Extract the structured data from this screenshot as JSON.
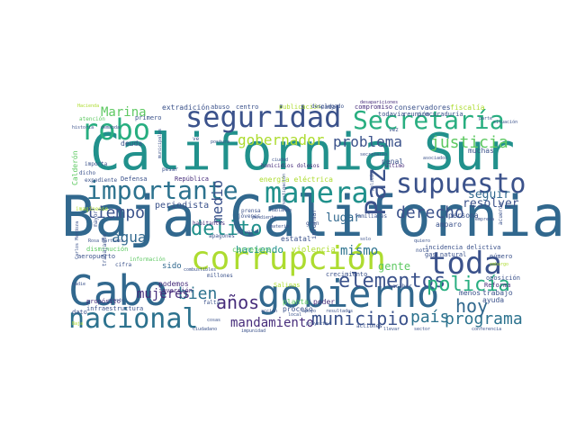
{
  "palette": {
    "purple": "#440154",
    "indigo": "#472d7b",
    "blue": "#3b528b",
    "steel": "#2c728e",
    "teal": "#21918c",
    "green": "#28ae80",
    "lime": "#5ec962",
    "yellow": "#addc30",
    "bright": "#d5e21a"
  },
  "words": [
    {
      "text": "Baja California",
      "color": "#31688e"
    },
    {
      "text": "California Sur",
      "color": "#21918c"
    },
    {
      "text": "gobierno",
      "color": "#31688e"
    },
    {
      "text": "Cabo",
      "color": "#31688e"
    },
    {
      "text": "corrupción",
      "color": "#addc30"
    },
    {
      "text": "seguridad",
      "color": "#3b528b"
    },
    {
      "text": "Secretaría",
      "color": "#28ae80"
    },
    {
      "text": "manera",
      "color": "#21918c"
    },
    {
      "text": "importante",
      "color": "#2c728e"
    },
    {
      "text": "supuesto",
      "color": "#3b528b"
    },
    {
      "text": "nacional",
      "color": "#2c728e"
    },
    {
      "text": "toda",
      "color": "#3b528b"
    },
    {
      "text": "robo",
      "color": "#28ae80"
    },
    {
      "text": "Paz",
      "color": "#3b528b"
    },
    {
      "text": "municipio",
      "color": "#3b528b"
    },
    {
      "text": "elementos",
      "color": "#3b528b"
    },
    {
      "text": "delito",
      "color": "#21918c"
    },
    {
      "text": "años",
      "color": "#472d7b"
    },
    {
      "text": "policía",
      "color": "#28ae80"
    },
    {
      "text": "país",
      "color": "#2c728e"
    },
    {
      "text": "programa",
      "color": "#2c728e"
    },
    {
      "text": "bien",
      "color": "#2c728e"
    },
    {
      "text": "hoy",
      "color": "#31688e"
    },
    {
      "text": "justicia",
      "color": "#5ec962"
    },
    {
      "text": "derecho",
      "color": "#3b528b"
    },
    {
      "text": "gobernador",
      "color": "#addc30"
    },
    {
      "text": "problema",
      "color": "#3b528b"
    },
    {
      "text": "tiempo",
      "color": "#3b528b"
    },
    {
      "text": "agua",
      "color": "#31688e"
    },
    {
      "text": "mujeres",
      "color": "#472d7b"
    },
    {
      "text": "mandamiento",
      "color": "#472d7b"
    },
    {
      "text": "Marina",
      "color": "#5ec962"
    },
    {
      "text": "medio",
      "color": "#3b528b"
    },
    {
      "text": "mismo",
      "color": "#2c728e"
    },
    {
      "text": "seguir",
      "color": "#31688e"
    },
    {
      "text": "resolver",
      "color": "#3b528b"
    },
    {
      "text": "lugar",
      "color": "#31688e"
    },
    {
      "text": "gente",
      "color": "#5ec962"
    },
    {
      "text": "periodista",
      "color": "#3b528b"
    },
    {
      "text": "haciendo",
      "color": "#21918c"
    },
    {
      "text": "sido",
      "color": "#31688e"
    },
    {
      "text": "extradición",
      "color": "#3b528b"
    },
    {
      "text": "conservadores",
      "color": "#3b528b"
    },
    {
      "text": "fiscalía",
      "color": "#addc30"
    },
    {
      "text": "energía eléctrica",
      "color": "#addc30"
    },
    {
      "text": "persona",
      "color": "#3b528b"
    },
    {
      "text": "amparo",
      "color": "#3b528b"
    },
    {
      "text": "penal",
      "color": "#3b528b"
    },
    {
      "text": "proceso",
      "color": "#3b528b"
    },
    {
      "text": "poder",
      "color": "#472d7b"
    },
    {
      "text": "planta",
      "color": "#5ec962"
    },
    {
      "text": "estatal",
      "color": "#3b528b"
    },
    {
      "text": "podemos",
      "color": "#472d7b"
    },
    {
      "text": "inversión",
      "color": "#472d7b"
    },
    {
      "text": "violencia",
      "color": "#addc30"
    },
    {
      "text": "carretera",
      "color": "#5ec962"
    },
    {
      "text": "trabajo",
      "color": "#3b528b"
    },
    {
      "text": "menos",
      "color": "#3b528b"
    },
    {
      "text": "ayuda",
      "color": "#3b528b"
    },
    {
      "text": "muchas",
      "color": "#3b528b"
    },
    {
      "text": "deuda",
      "color": "#3b528b"
    },
    {
      "text": "dato",
      "color": "#3b528b"
    },
    {
      "text": "infraestructura",
      "color": "#3b528b"
    },
    {
      "text": "propósito",
      "color": "#472d7b"
    },
    {
      "text": "Salinas",
      "color": "#addc30"
    },
    {
      "text": "crecimiento",
      "color": "#3b528b"
    },
    {
      "text": "incidencia delictiva",
      "color": "#3b528b"
    },
    {
      "text": "gas natural",
      "color": "#3b528b"
    },
    {
      "text": "número",
      "color": "#3b528b"
    },
    {
      "text": "oposición",
      "color": "#3b528b"
    },
    {
      "text": "Reforma",
      "color": "#472d7b"
    },
    {
      "text": "primero",
      "color": "#3b528b"
    },
    {
      "text": "abuso",
      "color": "#3b528b"
    },
    {
      "text": "centro",
      "color": "#3b528b"
    },
    {
      "text": "compromiso",
      "color": "#472d7b"
    },
    {
      "text": "todavía",
      "color": "#3b528b"
    },
    {
      "text": "reunión",
      "color": "#3b528b"
    },
    {
      "text": "procuraduría",
      "color": "#3b528b"
    },
    {
      "text": "publicación",
      "color": "#addc30"
    },
    {
      "text": "cada",
      "color": "#3b528b"
    },
    {
      "text": "desplegado",
      "color": "#3b528b"
    },
    {
      "text": "homicidios dolosos",
      "color": "#472d7b"
    },
    {
      "text": "último",
      "color": "#472d7b"
    },
    {
      "text": "Calderón",
      "color": "#5ec962"
    },
    {
      "text": "Defensa",
      "color": "#3b528b"
    },
    {
      "text": "República",
      "color": "#472d7b"
    },
    {
      "text": "habitantes",
      "color": "#472d7b"
    },
    {
      "text": "apagones",
      "color": "#3b528b"
    },
    {
      "text": "millones",
      "color": "#3b528b"
    },
    {
      "text": "jóvenes",
      "color": "#3b528b"
    },
    {
      "text": "prensa",
      "color": "#3b528b"
    },
    {
      "text": "informar",
      "color": "#3b528b"
    },
    {
      "text": "familiares",
      "color": "#3b528b"
    },
    {
      "text": "aeropuerto",
      "color": "#3b528b"
    },
    {
      "text": "cifra",
      "color": "#3b528b"
    },
    {
      "text": "información",
      "color": "#5ec962"
    },
    {
      "text": "disminución",
      "color": "#5ec962"
    },
    {
      "text": "atención",
      "color": "#5ec962"
    },
    {
      "text": "acciones",
      "color": "#3b528b"
    },
    {
      "text": "desapariciones",
      "color": "#472d7b"
    },
    {
      "text": "nivel",
      "color": "#3b528b"
    },
    {
      "text": "gran",
      "color": "#3b528b"
    },
    {
      "text": "nota",
      "color": "#3b528b"
    },
    {
      "text": "ciudad",
      "color": "#3b528b"
    },
    {
      "text": "importa",
      "color": "#3b528b"
    },
    {
      "text": "pesar",
      "color": "#3b528b"
    },
    {
      "text": "vez",
      "color": "#3b528b"
    },
    {
      "text": "ve",
      "color": "#3b528b"
    },
    {
      "text": "dicho",
      "color": "#3b528b"
    },
    {
      "text": "expediente",
      "color": "#3b528b"
    },
    {
      "text": "imagínense",
      "color": "#addc30"
    },
    {
      "text": "trabajando",
      "color": "#3b528b"
    },
    {
      "text": "acción",
      "color": "#3b528b"
    },
    {
      "text": "falta",
      "color": "#3b528b"
    },
    {
      "text": "mayor",
      "color": "#3b528b"
    },
    {
      "text": "combustibles",
      "color": "#3b528b"
    },
    {
      "text": "pendiente",
      "color": "#3b528b"
    },
    {
      "text": "apoyo",
      "color": "#3b528b"
    },
    {
      "text": "resultados",
      "color": "#3b528b"
    },
    {
      "text": "acabar",
      "color": "#3b528b"
    },
    {
      "text": "quiero",
      "color": "#3b528b"
    },
    {
      "text": "abasto",
      "color": "#3b528b"
    },
    {
      "text": "Hacienda",
      "color": "#addc30"
    },
    {
      "text": "Baja",
      "color": "#addc30"
    },
    {
      "text": "solo",
      "color": "#3b528b"
    },
    {
      "text": "postura",
      "color": "#3b528b"
    },
    {
      "text": "llevar",
      "color": "#3b528b"
    },
    {
      "text": "local",
      "color": "#3b528b"
    },
    {
      "text": "embargo",
      "color": "#addc30"
    },
    {
      "text": "nadie",
      "color": "#3b528b"
    },
    {
      "text": "cosas",
      "color": "#3b528b"
    },
    {
      "text": "acuerdo",
      "color": "#3b528b"
    },
    {
      "text": "Carlos Mendoza",
      "color": "#3b528b"
    },
    {
      "text": "municipales",
      "color": "#3b528b"
    },
    {
      "text": "situación",
      "color": "#3b528b"
    },
    {
      "text": "policías",
      "color": "#3b528b"
    },
    {
      "text": "hablando",
      "color": "#3b528b"
    },
    {
      "text": "materia",
      "color": "#3b528b"
    },
    {
      "text": "empresa",
      "color": "#3b528b"
    },
    {
      "text": "parte",
      "color": "#3b528b"
    },
    {
      "text": "Rosa Martínez",
      "color": "#3b528b"
    },
    {
      "text": "proyecto",
      "color": "#3b528b"
    },
    {
      "text": "investigación",
      "color": "#3b528b"
    },
    {
      "text": "demanda",
      "color": "#3b528b"
    },
    {
      "text": "historia",
      "color": "#3b528b"
    },
    {
      "text": "secretario",
      "color": "#3b528b"
    },
    {
      "text": "asociados",
      "color": "#3b528b"
    },
    {
      "text": "impunidad",
      "color": "#3b528b"
    },
    {
      "text": "ciudadano",
      "color": "#3b528b"
    },
    {
      "text": "conferencia",
      "color": "#3b528b"
    },
    {
      "text": "sector",
      "color": "#3b528b"
    }
  ]
}
